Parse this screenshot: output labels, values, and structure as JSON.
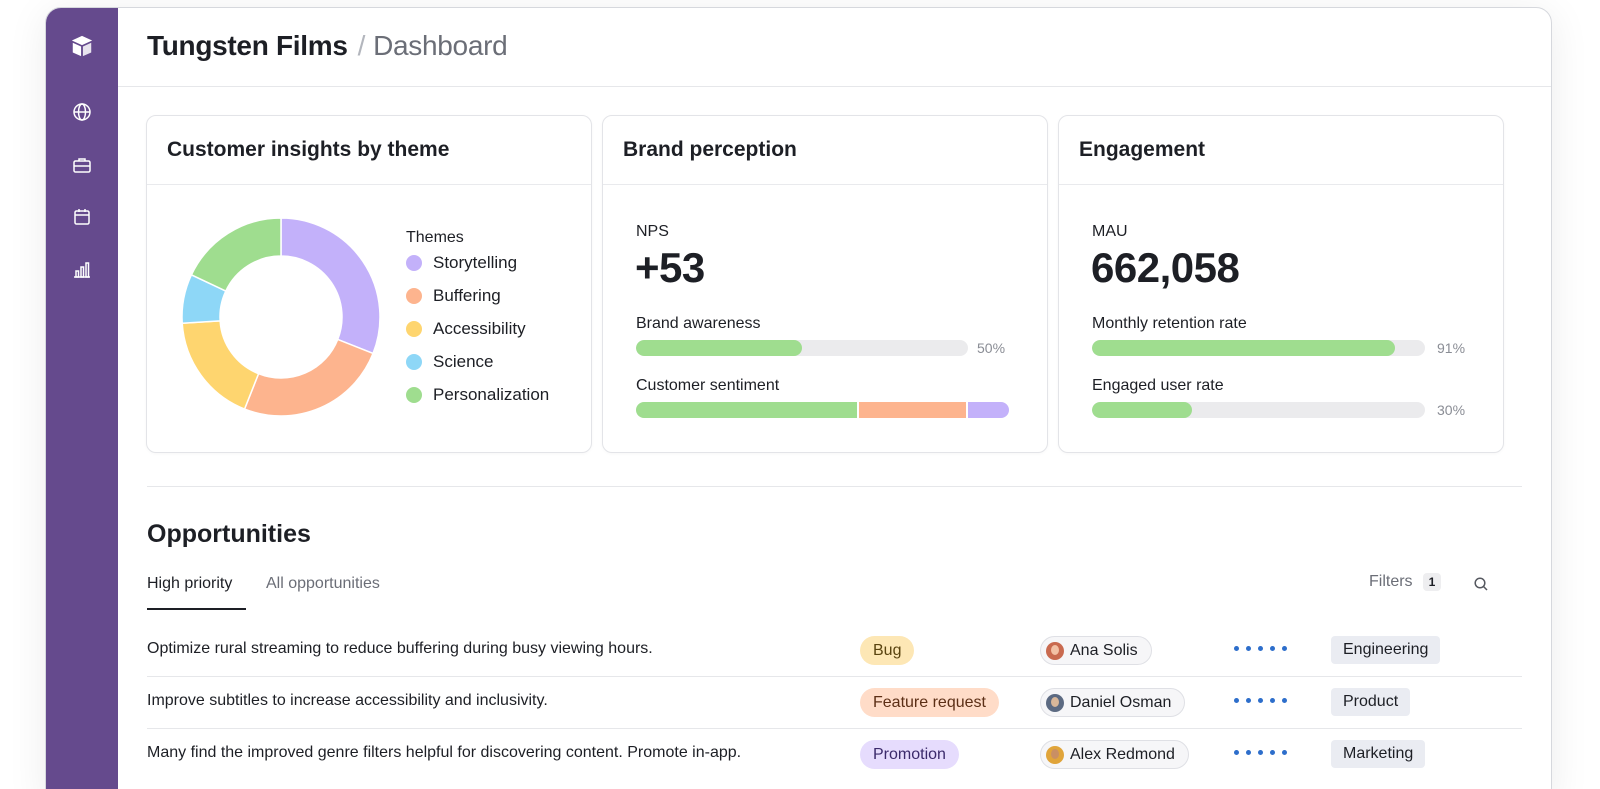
{
  "sidebar": {
    "logo": "logo-icon",
    "items": [
      {
        "icon": "globe-icon"
      },
      {
        "icon": "briefcase-icon"
      },
      {
        "icon": "calendar-icon"
      },
      {
        "icon": "bar-chart-icon"
      }
    ]
  },
  "header": {
    "org": "Tungsten Films",
    "separator": "/",
    "page": "Dashboard"
  },
  "insights": {
    "title": "Customer insights by theme",
    "legend_title": "Themes",
    "chart_data": {
      "type": "pie",
      "categories": [
        "Storytelling",
        "Buffering",
        "Accessibility",
        "Science",
        "Personalization"
      ],
      "values": [
        31,
        25,
        18,
        8,
        18
      ],
      "colors": [
        "#c3b1fa",
        "#fdb48e",
        "#fed56f",
        "#8ed7f7",
        "#9fdd8f"
      ]
    }
  },
  "brand": {
    "title": "Brand perception",
    "metric_label": "NPS",
    "metric_value": "+53",
    "bar1": {
      "label": "Brand awareness",
      "value": 50,
      "pct_label": "50%"
    },
    "bar2": {
      "label": "Customer sentiment",
      "segments": [
        {
          "value": 60,
          "color": "#9fdd8f"
        },
        {
          "value": 29,
          "color": "#fdb48e"
        },
        {
          "value": 11,
          "color": "#c3b1fa"
        }
      ]
    }
  },
  "engagement": {
    "title": "Engagement",
    "metric_label": "MAU",
    "metric_value": "662,058",
    "bar1": {
      "label": "Monthly retention rate",
      "value": 91,
      "pct_label": "91%"
    },
    "bar2": {
      "label": "Engaged user rate",
      "value": 30,
      "pct_label": "30%"
    }
  },
  "opportunities": {
    "title": "Opportunities",
    "tabs": [
      {
        "label": "High priority",
        "active": true
      },
      {
        "label": "All opportunities",
        "active": false
      }
    ],
    "filters_label": "Filters",
    "filters_count": "1",
    "rows": [
      {
        "text": "Optimize rural streaming to reduce buffering during busy viewing hours.",
        "tag": "Bug",
        "tag_bg": "#fde7b5",
        "tag_color": "#5a4410",
        "person": "Ana Solis",
        "avatar_bg": "#c96a4f",
        "avatar_face": "#f2c1a5",
        "rating": 5,
        "team": "Engineering"
      },
      {
        "text": "Improve subtitles to increase accessibility and inclusivity.",
        "tag": "Feature request",
        "tag_bg": "#ffdcc8",
        "tag_color": "#5c2f16",
        "person": "Daniel Osman",
        "avatar_bg": "#5c6a82",
        "avatar_face": "#d9b79a",
        "rating": 5,
        "team": "Product"
      },
      {
        "text": "Many find the improved genre filters helpful for discovering content. Promote in-app.",
        "tag": "Promotion",
        "tag_bg": "#e6dcfd",
        "tag_color": "#3b2a6b",
        "person": "Alex Redmond",
        "avatar_bg": "#e0a43a",
        "avatar_face": "#c98f64",
        "rating": 5,
        "team": "Marketing"
      }
    ]
  }
}
